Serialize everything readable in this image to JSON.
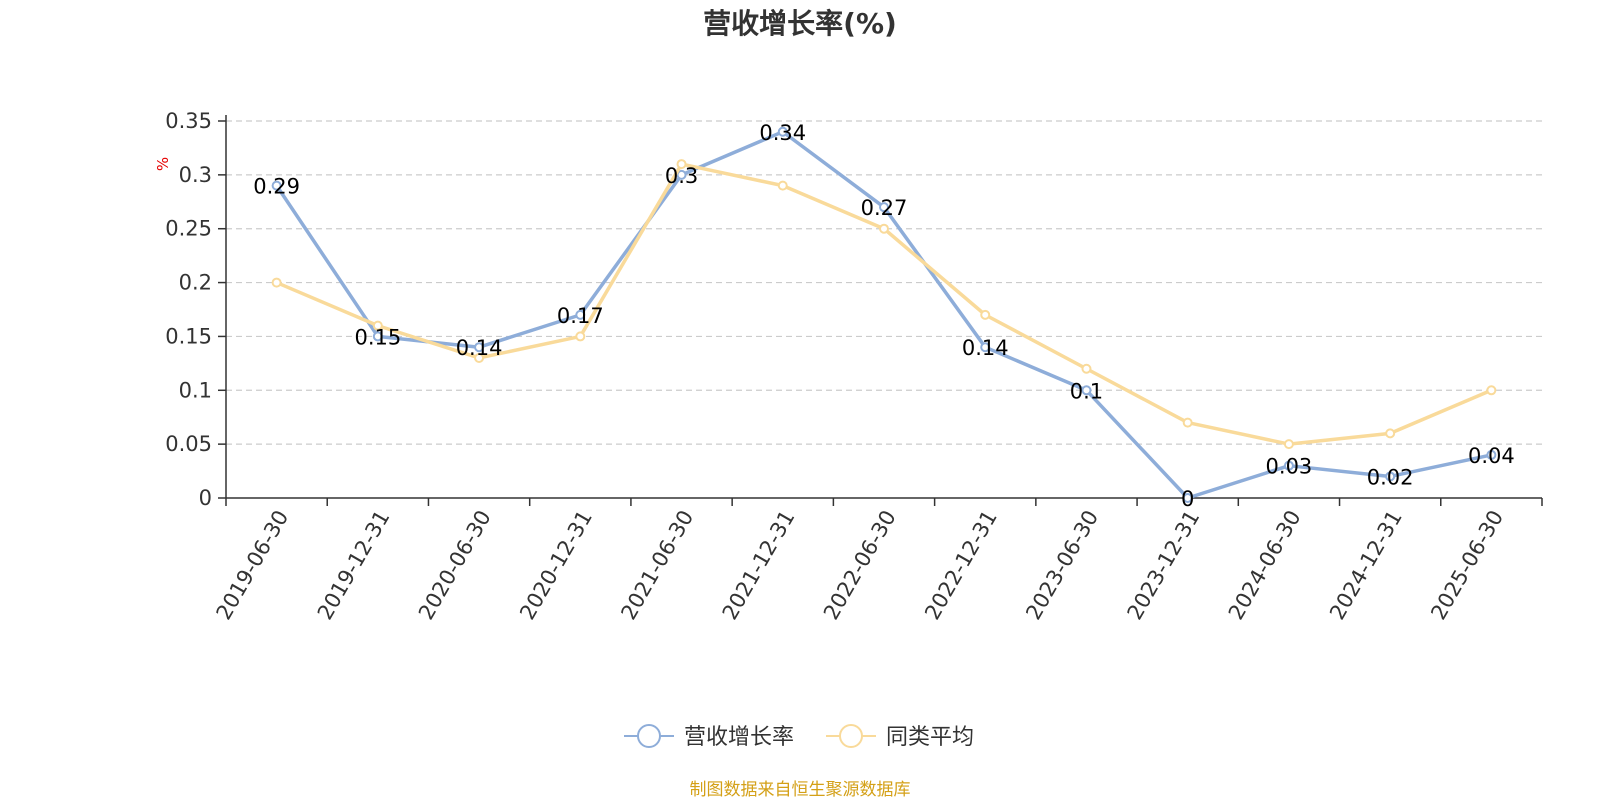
{
  "chart_data": {
    "type": "line",
    "title": "营收增长率(%)",
    "ylabel": "%",
    "ylim": [
      0,
      0.35
    ],
    "yticks": [
      0,
      0.05,
      0.1,
      0.15,
      0.2,
      0.25,
      0.3,
      0.35
    ],
    "grid": true,
    "legend_position": "bottom",
    "categories": [
      "2019-06-30",
      "2019-12-31",
      "2020-06-30",
      "2020-12-31",
      "2021-06-30",
      "2021-12-31",
      "2022-06-30",
      "2022-12-31",
      "2023-06-30",
      "2023-12-31",
      "2024-06-30",
      "2024-12-31",
      "2025-06-30"
    ],
    "series": [
      {
        "name": "营收增长率",
        "color": "#8EADD9",
        "values": [
          0.29,
          0.15,
          0.14,
          0.17,
          0.3,
          0.34,
          0.27,
          0.14,
          0.1,
          0.0,
          0.03,
          0.02,
          0.04
        ],
        "labels": [
          "0.29",
          "0.15",
          "0.14",
          "0.17",
          "0.3",
          "0.34",
          "0.27",
          "0.14",
          "0.1",
          "0",
          "0.03",
          "0.02",
          "0.04"
        ]
      },
      {
        "name": "同类平均",
        "color": "#F9DA9A",
        "values": [
          0.2,
          0.16,
          0.13,
          0.15,
          0.31,
          0.29,
          0.25,
          0.17,
          0.12,
          0.07,
          0.05,
          0.06,
          0.1
        ]
      }
    ],
    "source": "制图数据来自恒生聚源数据库"
  },
  "colors": {
    "axis": "#333333",
    "grid": "#cccccc",
    "unit_label": "#e60000",
    "source_text": "#d4a017"
  }
}
